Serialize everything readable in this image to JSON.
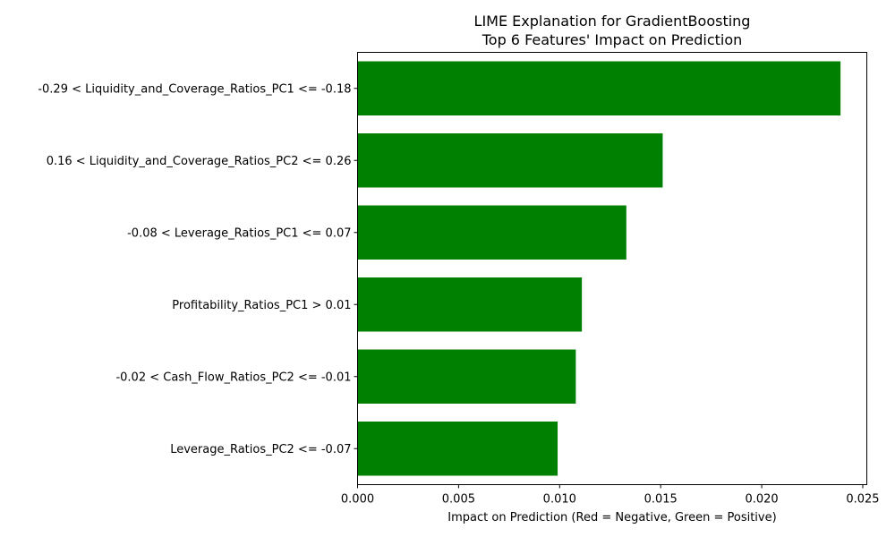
{
  "chart_data": {
    "type": "bar",
    "orientation": "horizontal",
    "title": "LIME Explanation for GradientBoosting",
    "subtitle": "Top 6 Features' Impact on Prediction",
    "xlabel": "Impact on Prediction (Red = Negative, Green = Positive)",
    "ylabel": "",
    "xlim": [
      0.0,
      0.0252
    ],
    "xticks": [
      0.0,
      0.005,
      0.01,
      0.015,
      0.02,
      0.025
    ],
    "xtick_labels": [
      "0.000",
      "0.005",
      "0.010",
      "0.015",
      "0.020",
      "0.025"
    ],
    "grid": false,
    "positive_color": "#008000",
    "negative_color": "#ff0000",
    "categories": [
      "-0.29 < Liquidity_and_Coverage_Ratios_PC1 <= -0.18",
      "0.16 < Liquidity_and_Coverage_Ratios_PC2 <= 0.26",
      "-0.08 < Leverage_Ratios_PC1 <= 0.07",
      "Profitability_Ratios_PC1 > 0.01",
      "-0.02 < Cash_Flow_Ratios_PC2 <= -0.01",
      "Leverage_Ratios_PC2 <= -0.07"
    ],
    "values": [
      0.0239,
      0.0151,
      0.0133,
      0.0111,
      0.0108,
      0.0099
    ]
  }
}
